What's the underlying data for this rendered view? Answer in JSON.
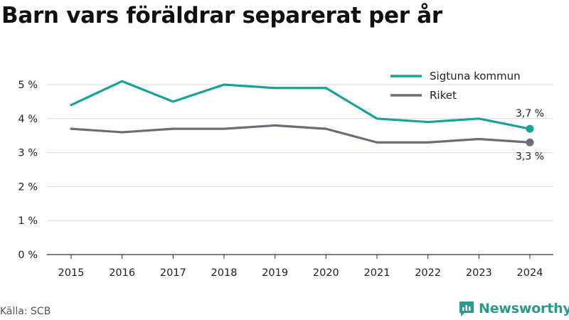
{
  "chart_data": {
    "type": "line",
    "title": "Barn vars föräldrar separerat per år",
    "xlabel": "",
    "ylabel": "",
    "x": [
      "2015",
      "2016",
      "2017",
      "2018",
      "2019",
      "2020",
      "2021",
      "2022",
      "2023",
      "2024"
    ],
    "ylim": [
      0,
      5.5
    ],
    "yticks": [
      0,
      1,
      2,
      3,
      4,
      5
    ],
    "ytick_labels": [
      "0 %",
      "1 %",
      "2 %",
      "3 %",
      "4 %",
      "5 %"
    ],
    "grid": "horizontal",
    "legend_position": "top-right",
    "series": [
      {
        "name": "Sigtuna kommun",
        "color": "#17a398",
        "values": [
          4.4,
          5.1,
          4.5,
          5.0,
          4.9,
          4.9,
          4.0,
          3.9,
          4.0,
          3.7
        ],
        "end_label": "3,7 %"
      },
      {
        "name": "Riket",
        "color": "#6d6d75",
        "values": [
          3.7,
          3.6,
          3.7,
          3.7,
          3.8,
          3.7,
          3.3,
          3.3,
          3.4,
          3.3
        ],
        "end_label": "3,3 %"
      }
    ]
  },
  "source": "Källa: SCB",
  "brand": {
    "name": "Newsworthy",
    "color": "#2a9a8f",
    "icon": "newsworthy-logo-icon"
  }
}
